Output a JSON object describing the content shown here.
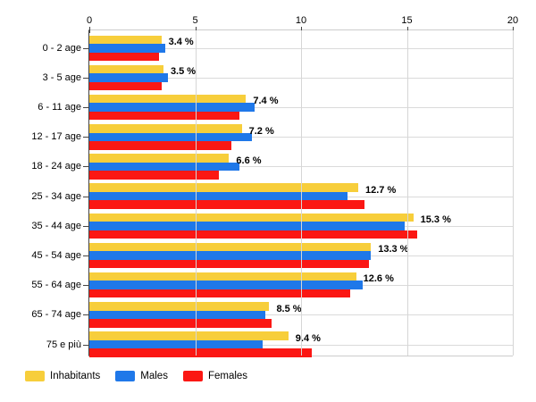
{
  "chart_data": {
    "type": "bar",
    "orientation": "horizontal",
    "categories": [
      "0 - 2 age",
      "3 - 5 age",
      "6 - 11 age",
      "12 - 17 age",
      "18 - 24 age",
      "25 - 34 age",
      "35 - 44 age",
      "45 - 54 age",
      "55 - 64 age",
      "65 - 74 age",
      "75 e più"
    ],
    "series": [
      {
        "name": "Inhabitants",
        "color": "#F7CE3B",
        "values": [
          3.4,
          3.5,
          7.4,
          7.2,
          6.6,
          12.7,
          15.3,
          13.3,
          12.6,
          8.5,
          9.4
        ]
      },
      {
        "name": "Males",
        "color": "#1F78E9",
        "values": [
          3.6,
          3.7,
          7.8,
          7.7,
          7.1,
          12.2,
          14.9,
          13.3,
          12.9,
          8.3,
          8.2
        ]
      },
      {
        "name": "Females",
        "color": "#FB1713",
        "values": [
          3.3,
          3.4,
          7.1,
          6.7,
          6.1,
          13.0,
          15.5,
          13.2,
          12.3,
          8.6,
          10.5
        ]
      }
    ],
    "bar_labels": [
      "3.4 %",
      "3.5 %",
      "7.4 %",
      "7.2 %",
      "6.6 %",
      "12.7 %",
      "15.3 %",
      "13.3 %",
      "12.6 %",
      "8.5 %",
      "9.4 %"
    ],
    "x_ticks": [
      0,
      5,
      10,
      15,
      20
    ],
    "xlim": [
      0,
      20
    ],
    "grid": true,
    "grid_color": "#d6d6d6",
    "axis_color": "#444444",
    "legend_position": "bottom"
  }
}
